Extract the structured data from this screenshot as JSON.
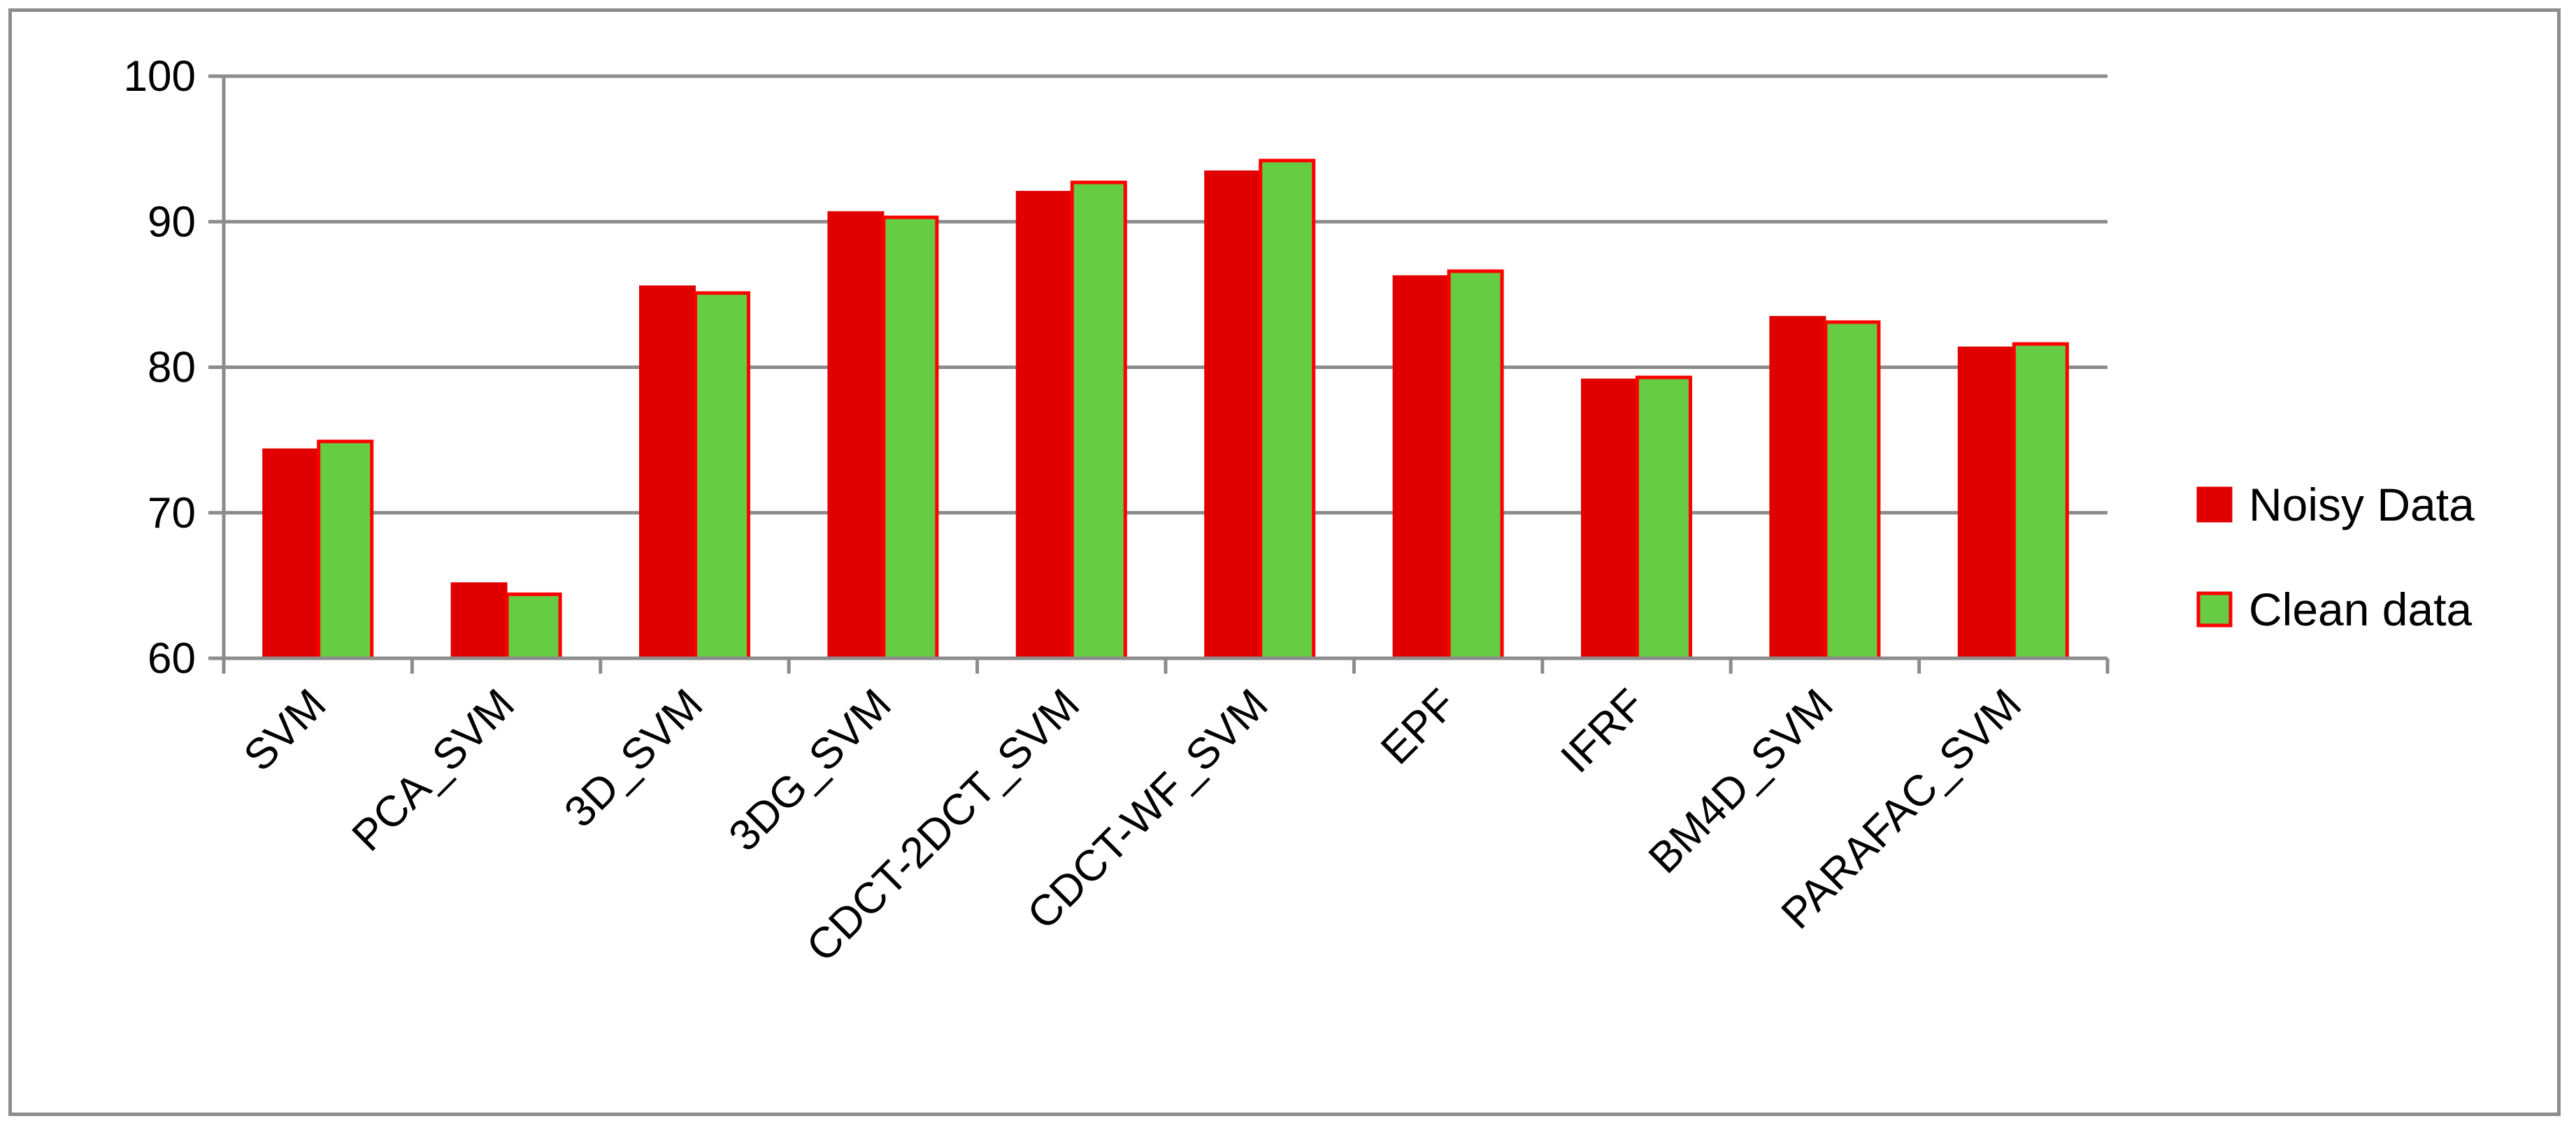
{
  "chart_data": {
    "type": "bar",
    "title": "",
    "xlabel": "",
    "ylabel": "",
    "categories": [
      "SVM",
      "PCA_SVM",
      "3D_SVM",
      "3DG_SVM",
      "CDCT-2DCT_SVM",
      "CDCT-WF_SVM",
      "EPF",
      "IFRF",
      "BM4D_SVM",
      "PARAFAC_SVM"
    ],
    "series": [
      {
        "name": "Noisy Data",
        "color": "#e00000",
        "border": "#e00000",
        "values": [
          74.3,
          65.1,
          85.5,
          90.6,
          92.0,
          93.4,
          86.2,
          79.1,
          83.4,
          81.3
        ]
      },
      {
        "name": "Clean data",
        "color": "#66cc44",
        "border": "#ff0000",
        "values": [
          74.9,
          64.4,
          85.1,
          90.3,
          92.7,
          94.2,
          86.6,
          79.3,
          83.1,
          81.6
        ]
      }
    ],
    "ylim": [
      60,
      100
    ],
    "yticks": [
      60,
      70,
      80,
      90,
      100
    ],
    "grid": true,
    "gridline_color": "#8c8c8c",
    "legend_position": "right"
  }
}
